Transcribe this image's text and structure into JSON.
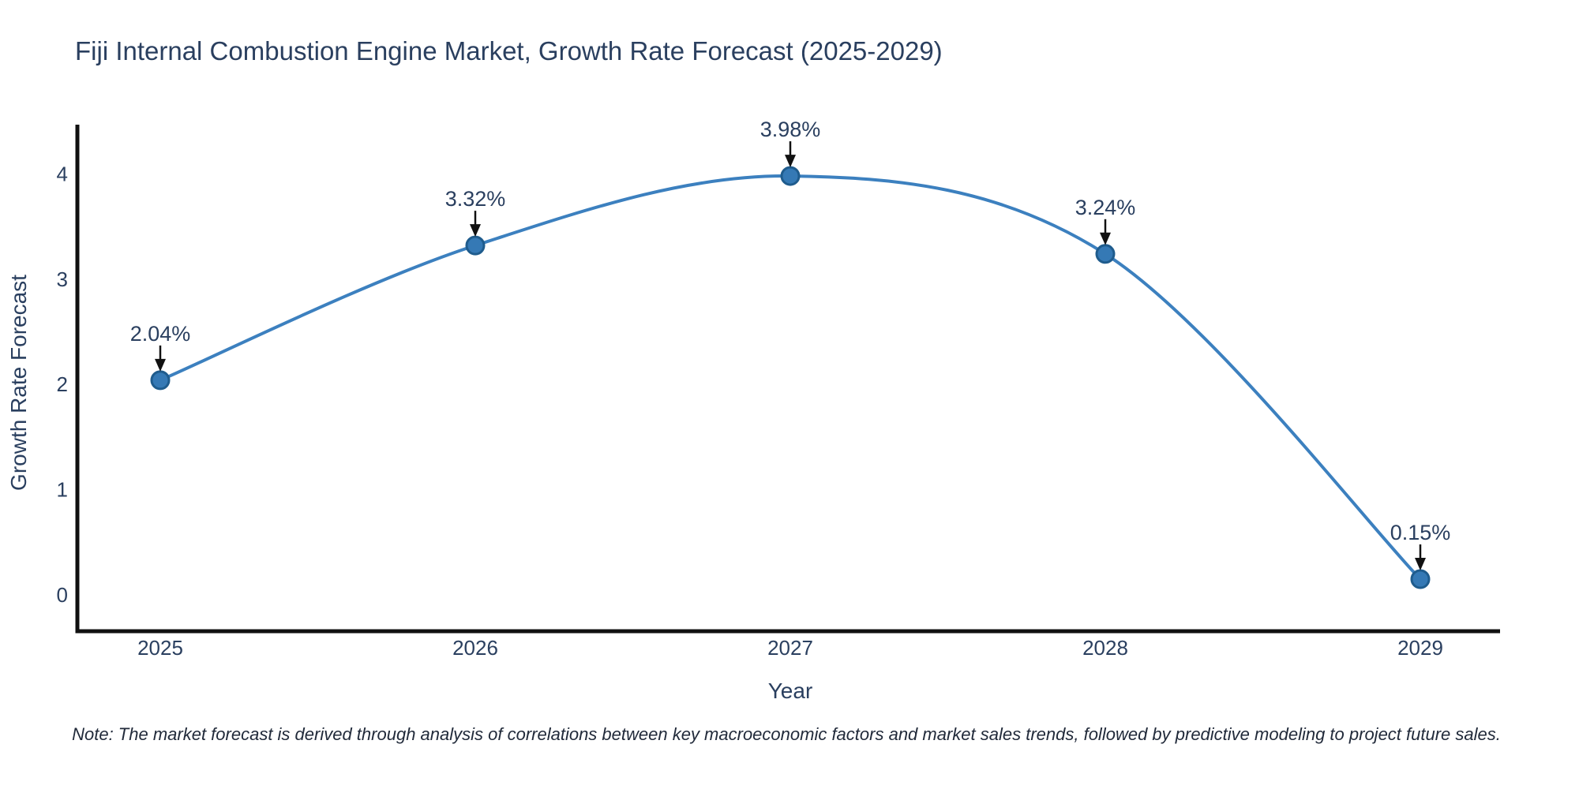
{
  "chart_data": {
    "type": "line",
    "title": "Fiji Internal Combustion Engine Market, Growth Rate Forecast (2025-2029)",
    "x": [
      2025,
      2026,
      2027,
      2028,
      2029
    ],
    "series": [
      {
        "name": "Growth Rate Forecast",
        "values": [
          2.04,
          3.32,
          3.98,
          3.24,
          0.15
        ]
      }
    ],
    "point_labels": [
      "2.04%",
      "3.32%",
      "3.98%",
      "3.24%",
      "0.15%"
    ],
    "xlabel": "Year",
    "ylabel": "Growth Rate Forecast",
    "xticks": [
      "2025",
      "2026",
      "2027",
      "2028",
      "2029"
    ],
    "yticks": [
      "0",
      "1",
      "2",
      "3",
      "4"
    ],
    "ylim": [
      -0.35,
      4.47
    ],
    "grid": false,
    "legend": "none",
    "line_shape": "spline",
    "note": "Note: The market forecast is derived through analysis of correlations between key macroeconomic factors and market sales trends, followed by predictive modeling to project future sales.",
    "colors": {
      "line": "#3c80bf",
      "marker_fill": "#3579b5",
      "marker_edge": "#1f5c8d",
      "text": "#2a3f5f",
      "axis": "#111111",
      "arrow": "#111111"
    }
  }
}
